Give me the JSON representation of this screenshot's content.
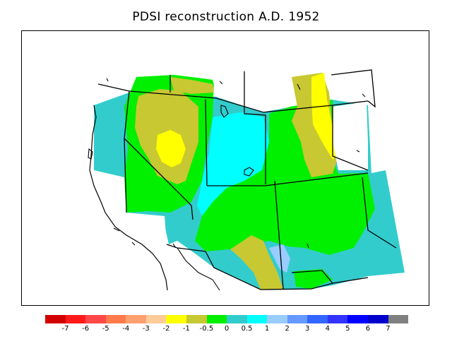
{
  "title": "PDSI reconstruction A.D. 1952",
  "legend": {
    "colors": [
      "#d30000",
      "#ff1a1a",
      "#ff4848",
      "#ff7a4a",
      "#ffa070",
      "#ffcc99",
      "#ffff00",
      "#c8c832",
      "#00f000",
      "#33cccc",
      "#00ffff",
      "#99ccff",
      "#6699ff",
      "#3366ff",
      "#3333ff",
      "#0000ff",
      "#0000cc",
      "#808080"
    ],
    "labels": [
      "-7",
      "-6",
      "-5",
      "-4",
      "-3",
      "-2",
      "-1",
      "-0.5",
      "0",
      "0.5",
      "1",
      "2",
      "3",
      "4",
      "5",
      "6",
      "7"
    ]
  },
  "map_colors": {
    "near_normal": "#33cccc",
    "slightly_wet": "#00ffff",
    "normal_zero": "#00f000",
    "mild_dry": "#c8c832",
    "dry": "#ffff00",
    "outline": "#000000"
  }
}
